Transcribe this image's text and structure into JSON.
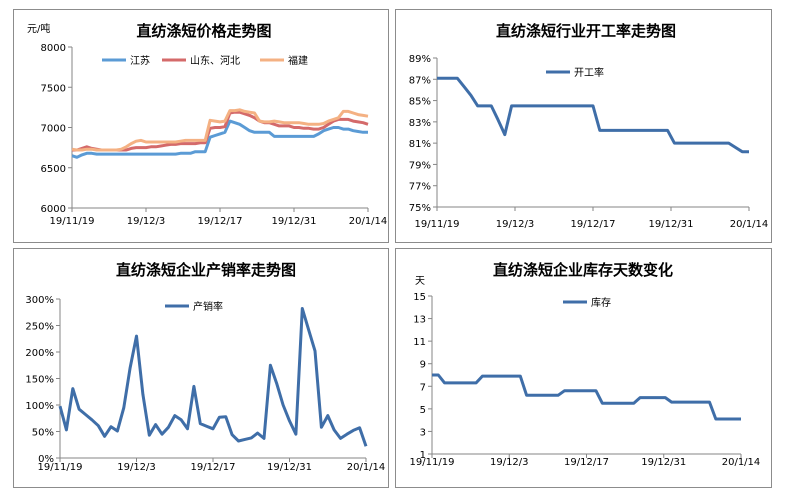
{
  "chart_data": [
    {
      "type": "line",
      "title": "直纺涤短价格走势图",
      "ylabel": "元/吨",
      "ylim": [
        6000,
        8000
      ],
      "yticks": [
        "6000",
        "6500",
        "7000",
        "7500",
        "8000"
      ],
      "x_tick_labels": [
        "19/11/19",
        "19/12/3",
        "19/12/17",
        "19/12/31",
        "20/1/14"
      ],
      "legend_position": "top",
      "grid": false,
      "series": [
        {
          "name": "江苏",
          "color": "#5b9bd5",
          "values": [
            6650,
            6630,
            6660,
            6680,
            6680,
            6670,
            6670,
            6670,
            6670,
            6670,
            6670,
            6670,
            6670,
            6670,
            6670,
            6670,
            6670,
            6670,
            6670,
            6670,
            6670,
            6670,
            6680,
            6680,
            6680,
            6700,
            6700,
            6700,
            6880,
            6900,
            6920,
            6940,
            7080,
            7060,
            7040,
            7000,
            6960,
            6940,
            6940,
            6940,
            6940,
            6890,
            6890,
            6890,
            6890,
            6890,
            6890,
            6890,
            6890,
            6890,
            6920,
            6960,
            6980,
            7000,
            7000,
            6980,
            6980,
            6960,
            6950,
            6940,
            6940
          ]
        },
        {
          "name": "山东、河北",
          "color": "#d46a6a",
          "values": [
            6720,
            6720,
            6740,
            6760,
            6740,
            6730,
            6720,
            6720,
            6720,
            6720,
            6720,
            6720,
            6740,
            6750,
            6750,
            6750,
            6760,
            6760,
            6770,
            6780,
            6790,
            6790,
            6800,
            6800,
            6800,
            6800,
            6810,
            6810,
            6990,
            7000,
            7000,
            7010,
            7180,
            7190,
            7190,
            7170,
            7150,
            7120,
            7080,
            7060,
            7060,
            7040,
            7020,
            7020,
            7020,
            7000,
            7000,
            6990,
            6990,
            6980,
            6980,
            7000,
            7040,
            7080,
            7100,
            7100,
            7100,
            7080,
            7070,
            7060,
            7040
          ]
        },
        {
          "name": "福建",
          "color": "#f4b183",
          "values": [
            6730,
            6720,
            6720,
            6730,
            6730,
            6720,
            6720,
            6720,
            6720,
            6720,
            6730,
            6760,
            6800,
            6830,
            6840,
            6820,
            6820,
            6820,
            6820,
            6820,
            6820,
            6820,
            6830,
            6840,
            6840,
            6840,
            6840,
            6840,
            7090,
            7080,
            7070,
            7080,
            7210,
            7210,
            7220,
            7200,
            7190,
            7180,
            7080,
            7070,
            7070,
            7080,
            7070,
            7060,
            7060,
            7060,
            7060,
            7050,
            7040,
            7040,
            7040,
            7050,
            7080,
            7100,
            7120,
            7200,
            7200,
            7180,
            7160,
            7150,
            7140
          ]
        }
      ]
    },
    {
      "type": "line",
      "title": "直纺涤短行业开工率走势图",
      "ylim": [
        75,
        89
      ],
      "yticks": [
        "75%",
        "77%",
        "79%",
        "81%",
        "83%",
        "85%",
        "87%",
        "89%"
      ],
      "x_tick_labels": [
        "19/11/19",
        "19/12/3",
        "19/12/17",
        "19/12/31",
        "20/1/14"
      ],
      "legend_position": "top-left",
      "grid": false,
      "series": [
        {
          "name": "开工率",
          "color": "#3f6ea8",
          "values": [
            87.1,
            87.1,
            87.1,
            87.1,
            86.3,
            85.5,
            84.5,
            84.5,
            84.5,
            83.2,
            81.8,
            84.5,
            84.5,
            84.5,
            84.5,
            84.5,
            84.5,
            84.5,
            84.5,
            84.5,
            84.5,
            84.5,
            84.5,
            84.5,
            82.2,
            82.2,
            82.2,
            82.2,
            82.2,
            82.2,
            82.2,
            82.2,
            82.2,
            82.2,
            82.2,
            81.0,
            81.0,
            81.0,
            81.0,
            81.0,
            81.0,
            81.0,
            81.0,
            81.0,
            80.6,
            80.2,
            80.2
          ]
        }
      ]
    },
    {
      "type": "line",
      "title": "直纺涤短企业产销率走势图",
      "ylim": [
        0,
        300
      ],
      "yticks": [
        "0%",
        "50%",
        "100%",
        "150%",
        "200%",
        "250%",
        "300%"
      ],
      "x_tick_labels": [
        "19/11/19",
        "19/12/3",
        "19/12/17",
        "19/12/31",
        "20/1/14"
      ],
      "legend_position": "top",
      "grid": false,
      "series": [
        {
          "name": "产销率",
          "color": "#3f6ea8",
          "values": [
            98,
            53,
            131,
            92,
            82,
            72,
            61,
            41,
            59,
            51,
            95,
            170,
            230,
            120,
            43,
            63,
            45,
            58,
            80,
            72,
            55,
            135,
            65,
            60,
            55,
            77,
            78,
            44,
            32,
            35,
            38,
            47,
            37,
            175,
            140,
            100,
            70,
            45,
            282,
            242,
            202,
            58,
            80,
            53,
            37,
            45,
            52,
            57,
            22
          ]
        }
      ]
    },
    {
      "type": "line",
      "title": "直纺涤短企业库存天数变化",
      "ylabel": "天",
      "ylim": [
        1,
        15
      ],
      "yticks": [
        "1",
        "3",
        "5",
        "7",
        "9",
        "11",
        "13",
        "15"
      ],
      "x_tick_labels": [
        "19/11/19",
        "19/12/3",
        "19/12/17",
        "19/12/31",
        "20/1/14"
      ],
      "legend_position": "top-left",
      "grid": false,
      "series": [
        {
          "name": "库存",
          "color": "#3f6ea8",
          "values": [
            8.0,
            8.0,
            7.3,
            7.3,
            7.3,
            7.3,
            7.3,
            7.3,
            7.9,
            7.9,
            7.9,
            7.9,
            7.9,
            7.9,
            7.9,
            6.2,
            6.2,
            6.2,
            6.2,
            6.2,
            6.2,
            6.6,
            6.6,
            6.6,
            6.6,
            6.6,
            6.6,
            5.5,
            5.5,
            5.5,
            5.5,
            5.5,
            5.5,
            6.0,
            6.0,
            6.0,
            6.0,
            6.0,
            5.6,
            5.6,
            5.6,
            5.6,
            5.6,
            5.6,
            5.6,
            4.1,
            4.1,
            4.1,
            4.1,
            4.1
          ]
        }
      ]
    }
  ]
}
